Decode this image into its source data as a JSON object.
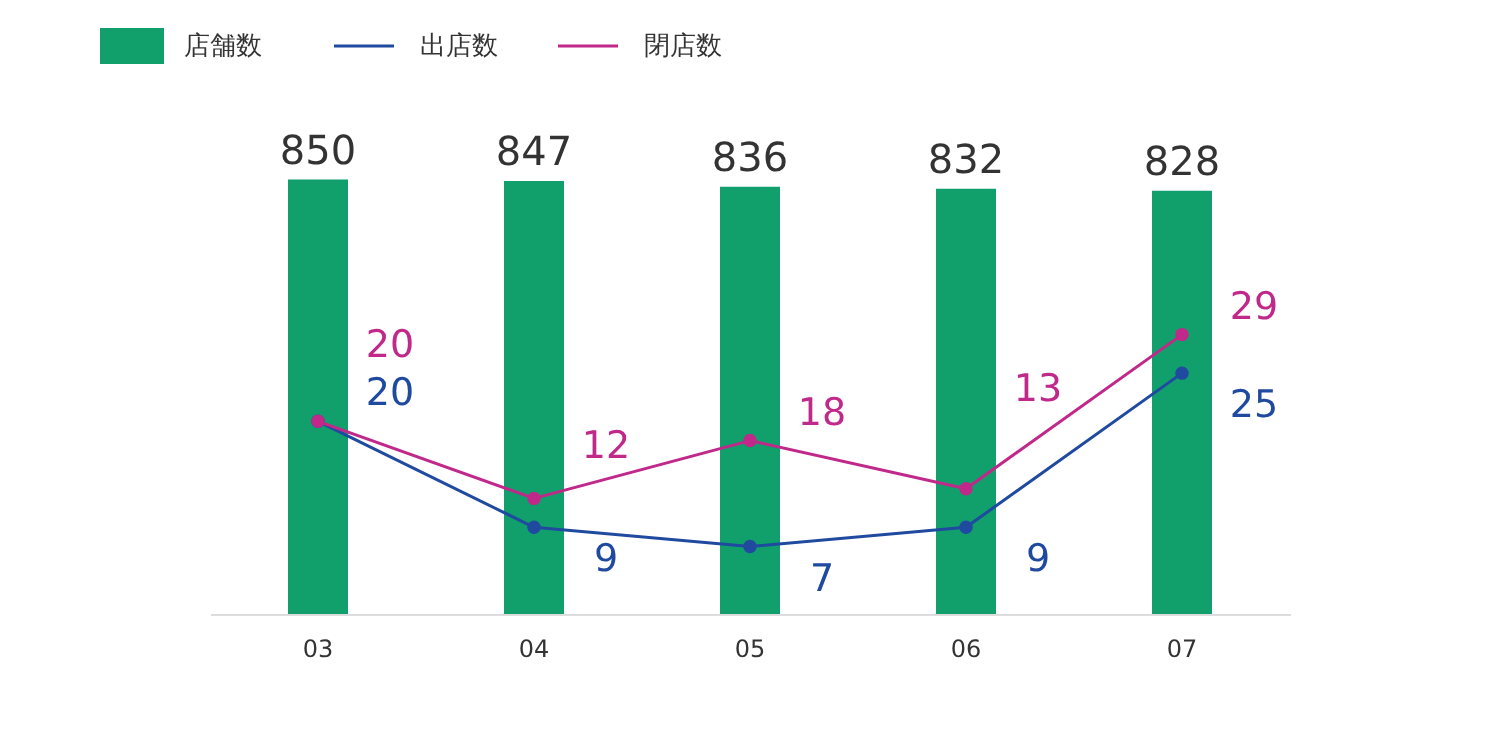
{
  "chart_data": {
    "type": "bar",
    "categories": [
      "03",
      "04",
      "05",
      "06",
      "07"
    ],
    "series": [
      {
        "name": "店舗数",
        "color": "#11a06b",
        "values": [
          850,
          847,
          836,
          832,
          828
        ]
      },
      {
        "name": "出店数",
        "type": "line",
        "axis": "y2",
        "color": "#1f4aa0",
        "values": [
          20,
          9,
          7,
          9,
          25
        ]
      },
      {
        "name": "閉店数",
        "type": "line",
        "axis": "y2",
        "color": "#c0288a",
        "values": [
          20,
          12,
          18,
          13,
          29
        ]
      }
    ],
    "data_labels": true,
    "grid": false,
    "legend": "top left",
    "marker": "circle",
    "tick_labels": "x"
  }
}
